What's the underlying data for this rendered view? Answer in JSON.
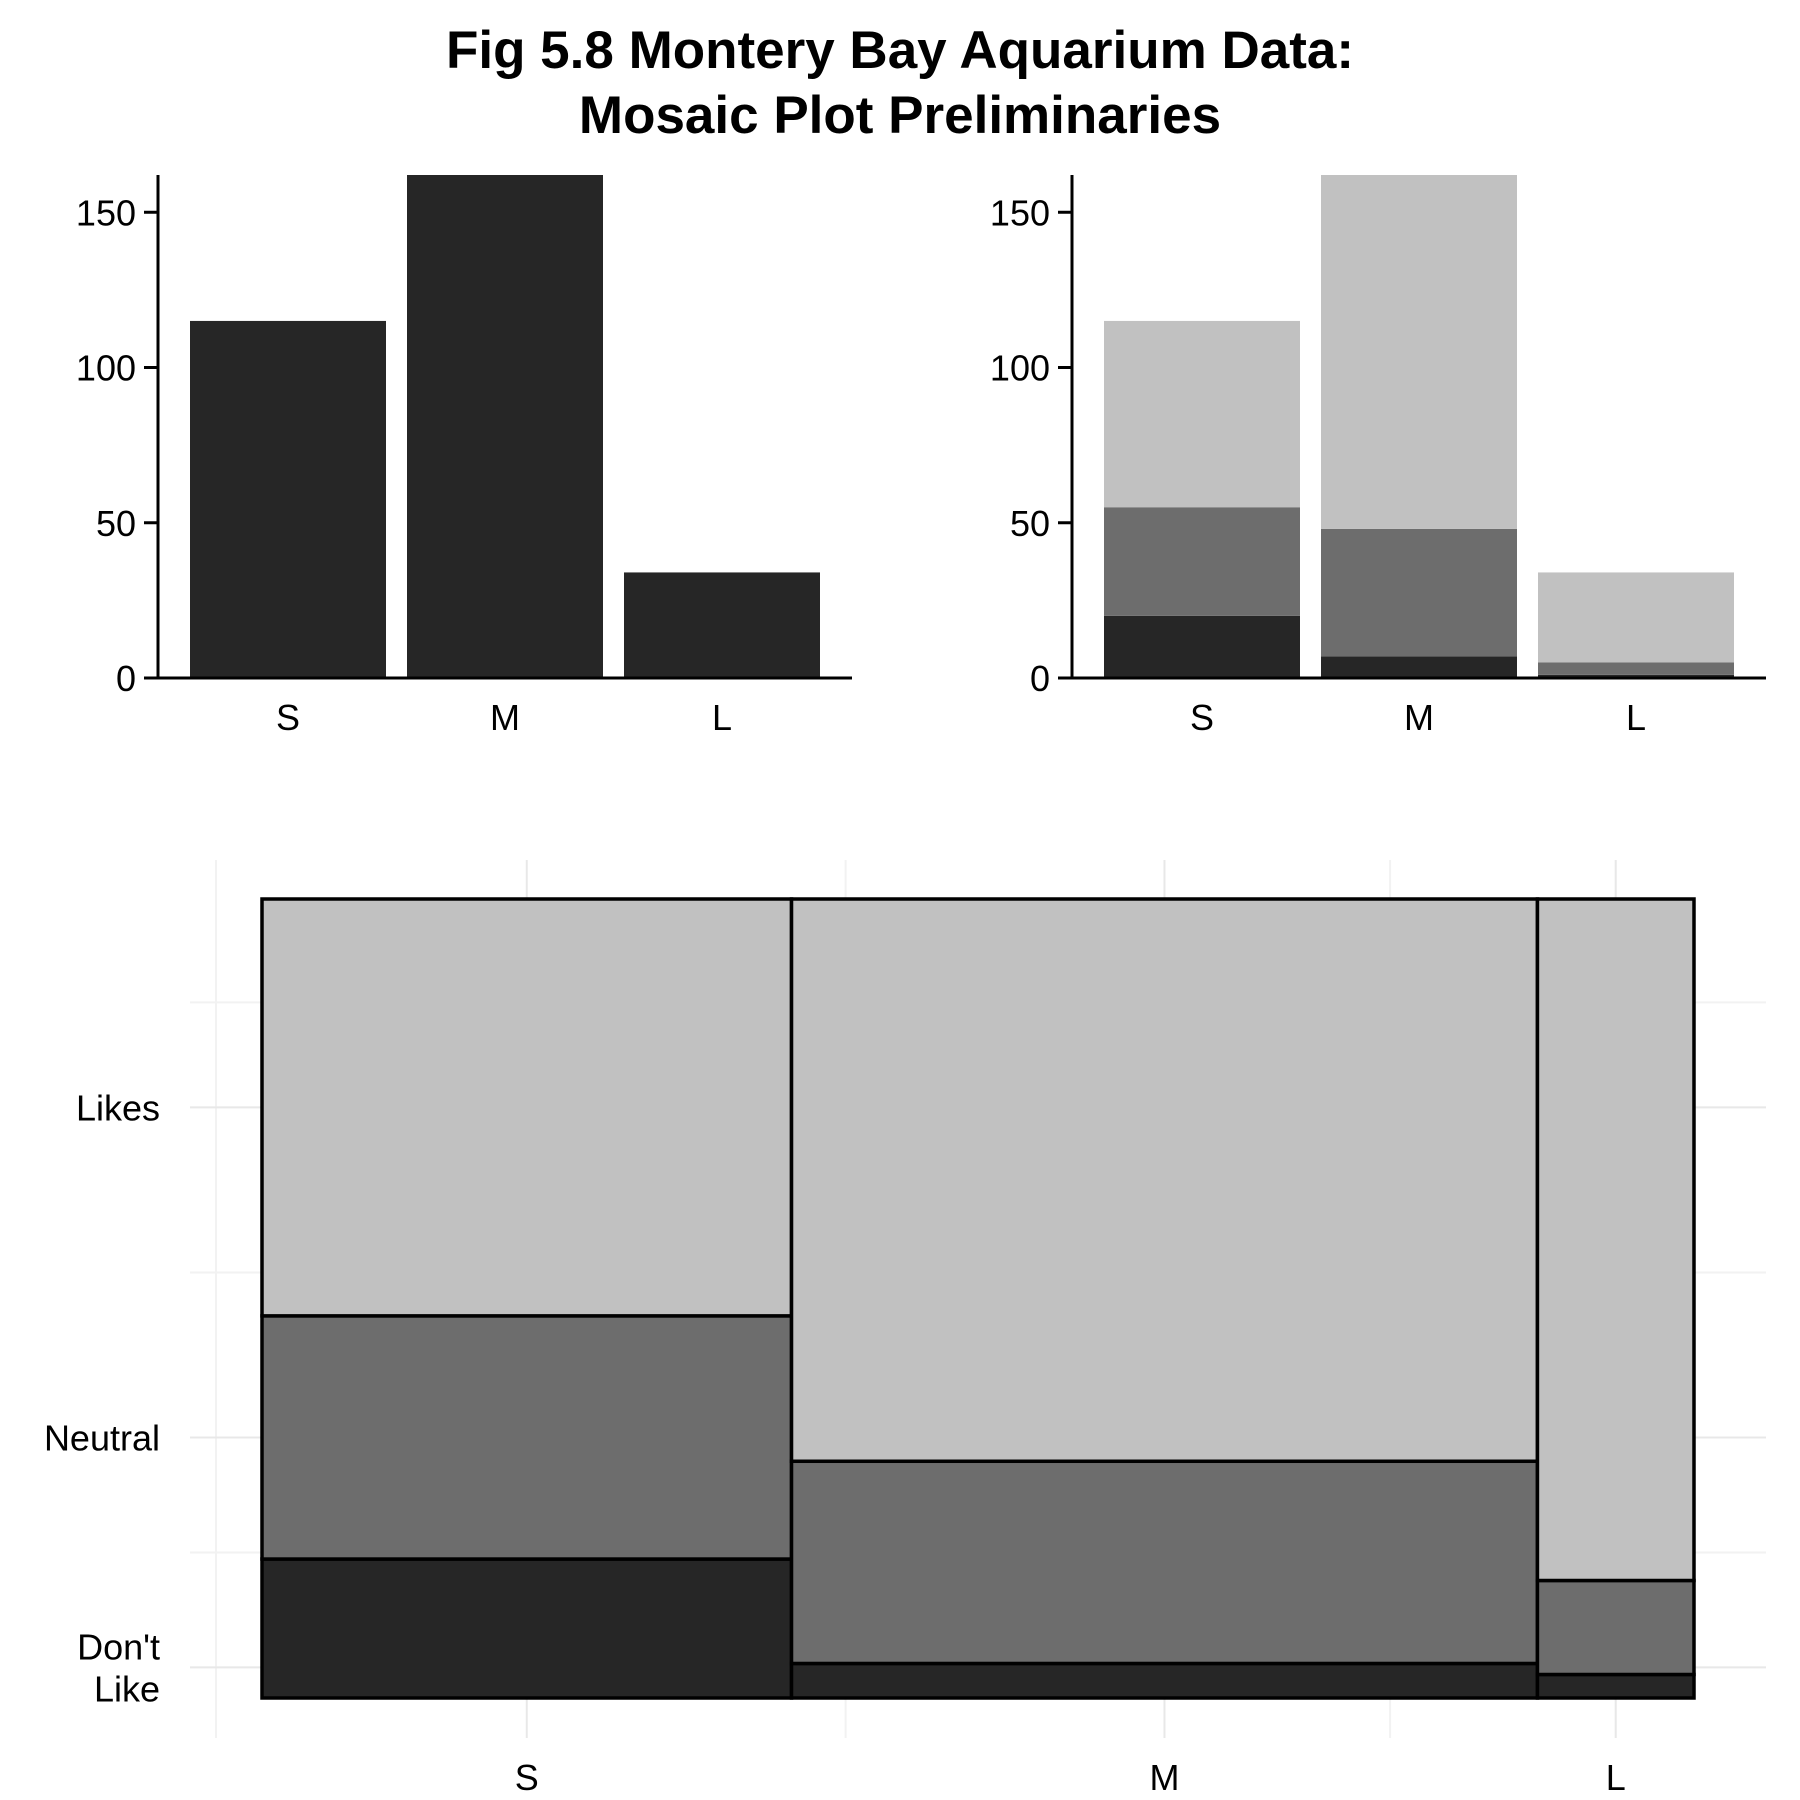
{
  "title_lines": [
    "Fig 5.8 Montery Bay Aquarium Data:",
    "Mosaic Plot Preliminaries"
  ],
  "colors": {
    "Don't Like": "#262626",
    "Neutral": "#6d6d6d",
    "Likes": "#c1c1c1",
    "outline": "#000000",
    "grid": "#e8e8e8"
  },
  "chart_data": [
    {
      "type": "bar",
      "panel": "top-left",
      "categories": [
        "S",
        "M",
        "L"
      ],
      "values": [
        115,
        162,
        34
      ],
      "ylim": [
        0,
        162
      ],
      "yticks": [
        0,
        50,
        100,
        150
      ],
      "grid": false
    },
    {
      "type": "bar",
      "stacked": true,
      "panel": "top-right",
      "categories": [
        "S",
        "M",
        "L"
      ],
      "series": [
        {
          "values": [
            20,
            7,
            1
          ]
        },
        {
          "values": [
            35,
            41,
            4
          ]
        },
        {
          "values": [
            60,
            114,
            29
          ]
        }
      ],
      "ylim": [
        0,
        162
      ],
      "yticks": [
        0,
        50,
        100,
        150
      ],
      "grid": false
    },
    {
      "type": "mosaic",
      "panel": "bottom",
      "x_categories": [
        "S",
        "M",
        "L"
      ],
      "x_counts": [
        115,
        162,
        34
      ],
      "y_categories": [
        "Don't Like",
        "Neutral",
        "Likes"
      ],
      "y_tick_labels": [
        "Don't\nLike",
        "Neutral",
        "Likes"
      ],
      "counts": {
        "S": [
          20,
          35,
          60
        ],
        "M": [
          7,
          41,
          114
        ],
        "L": [
          1,
          4,
          29
        ]
      },
      "grid": true
    }
  ]
}
